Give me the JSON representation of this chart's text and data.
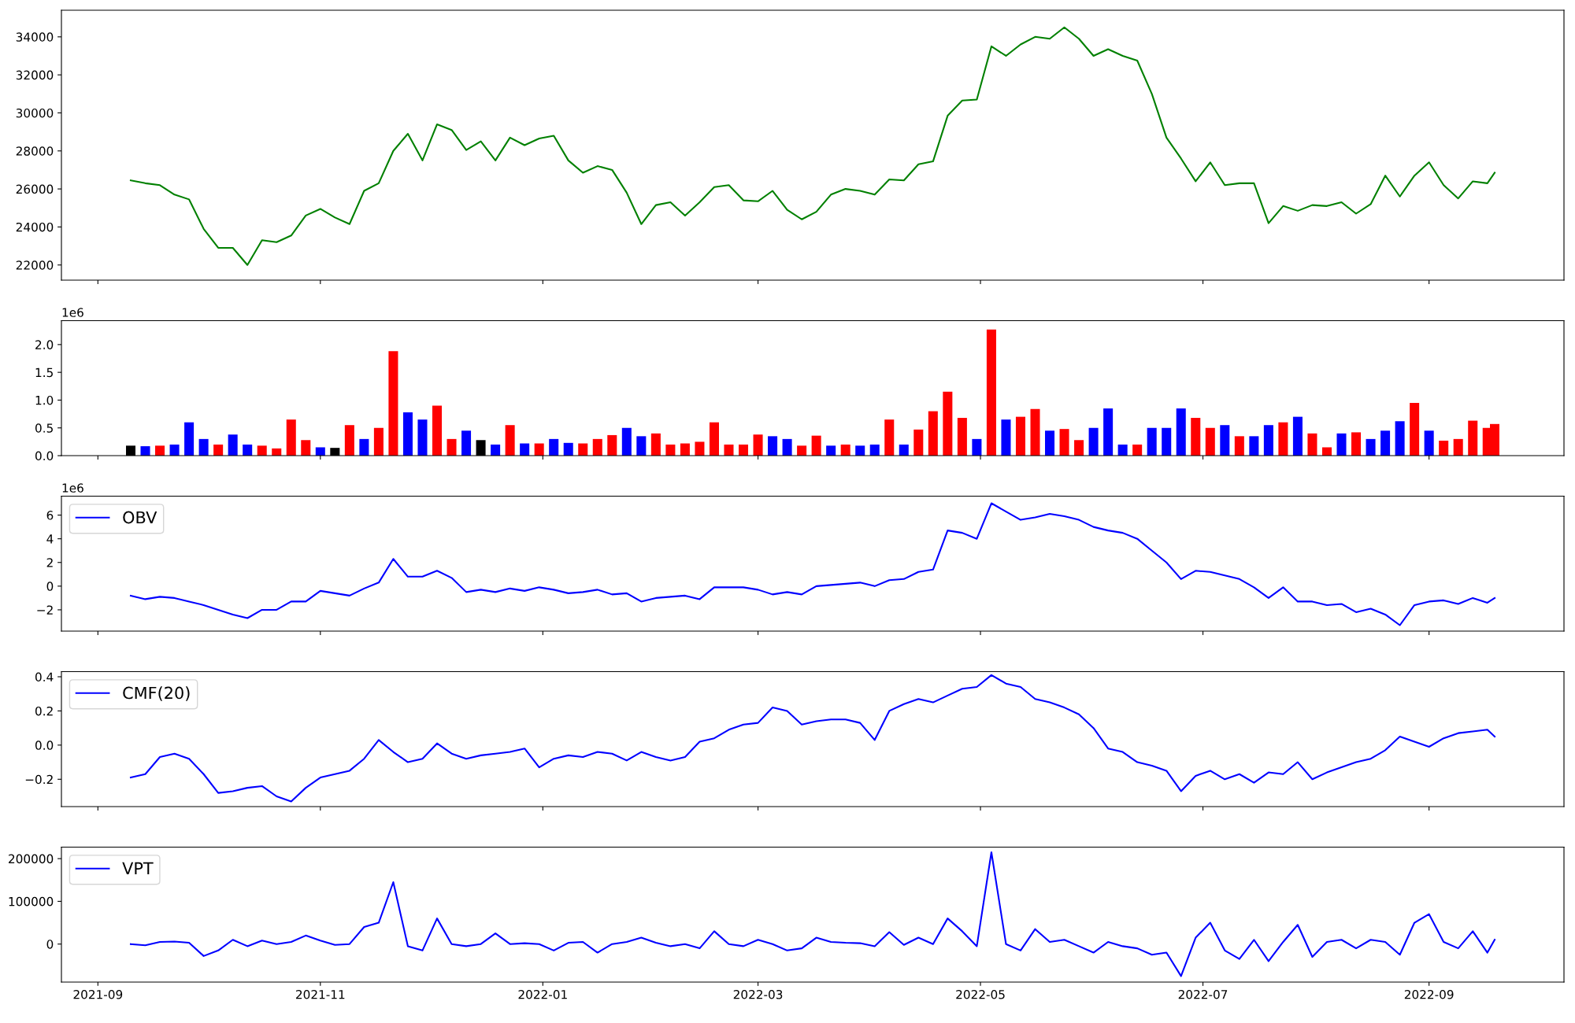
{
  "chart_data": [
    {
      "type": "line",
      "x": [
        "2021-09-10",
        "2021-09-14",
        "2021-09-18",
        "2021-09-22",
        "2021-09-26",
        "2021-09-30",
        "2021-10-04",
        "2021-10-08",
        "2021-10-12",
        "2021-10-16",
        "2021-10-20",
        "2021-10-24",
        "2021-10-28",
        "2021-11-01",
        "2021-11-05",
        "2021-11-09",
        "2021-11-13",
        "2021-11-17",
        "2021-11-21",
        "2021-11-25",
        "2021-11-29",
        "2021-12-03",
        "2021-12-07",
        "2021-12-11",
        "2021-12-15",
        "2021-12-19",
        "2021-12-23",
        "2021-12-27",
        "2021-12-31",
        "2022-01-04",
        "2022-01-08",
        "2022-01-12",
        "2022-01-16",
        "2022-01-20",
        "2022-01-24",
        "2022-01-28",
        "2022-02-01",
        "2022-02-05",
        "2022-02-09",
        "2022-02-13",
        "2022-02-17",
        "2022-02-21",
        "2022-02-25",
        "2022-03-01",
        "2022-03-05",
        "2022-03-09",
        "2022-03-13",
        "2022-03-17",
        "2022-03-21",
        "2022-03-25",
        "2022-03-29",
        "2022-04-02",
        "2022-04-06",
        "2022-04-10",
        "2022-04-14",
        "2022-04-18",
        "2022-04-22",
        "2022-04-26",
        "2022-04-30",
        "2022-05-04",
        "2022-05-08",
        "2022-05-12",
        "2022-05-16",
        "2022-05-20",
        "2022-05-24",
        "2022-05-28",
        "2022-06-01",
        "2022-06-05",
        "2022-06-09",
        "2022-06-13",
        "2022-06-17",
        "2022-06-21",
        "2022-06-25",
        "2022-06-29",
        "2022-07-03",
        "2022-07-07",
        "2022-07-11",
        "2022-07-15",
        "2022-07-19",
        "2022-07-23",
        "2022-07-27",
        "2022-07-31",
        "2022-08-04",
        "2022-08-08",
        "2022-08-12",
        "2022-08-16",
        "2022-08-20",
        "2022-08-24",
        "2022-08-28",
        "2022-09-01",
        "2022-09-05",
        "2022-09-09",
        "2022-09-13",
        "2022-09-17",
        "2022-09-19"
      ],
      "series": [
        {
          "color": "#008000",
          "values": [
            26450,
            26300,
            26200,
            25700,
            25450,
            23900,
            22900,
            22900,
            22000,
            23300,
            23200,
            23550,
            24600,
            24950,
            24500,
            24150,
            25900,
            26300,
            28000,
            28900,
            27500,
            29400,
            29100,
            28050,
            28500,
            27500,
            28700,
            28300,
            28650,
            28800,
            27500,
            26850,
            27200,
            27000,
            25800,
            24150,
            25150,
            25300,
            24600,
            25300,
            26100,
            26200,
            25400,
            25350,
            25900,
            24900,
            24400,
            24800,
            25700,
            26000,
            25900,
            25700,
            26500,
            26450,
            27300,
            27450,
            29850,
            30650,
            30700,
            33500,
            33000,
            33600,
            34000,
            33900,
            34500,
            33900,
            33000,
            33350,
            33000,
            32750,
            31000,
            28700,
            27600,
            26400,
            27400,
            26200,
            26300,
            26300,
            24200,
            25100,
            24850,
            25150,
            25100,
            25300,
            24700,
            25200,
            26700,
            25600,
            26700,
            27400,
            26200,
            25500,
            26400,
            26300,
            26850
          ]
        }
      ],
      "xlim": [
        "2021-08-22",
        "2022-10-08"
      ],
      "ylim": [
        21200,
        35400
      ],
      "yticks": [
        22000,
        24000,
        26000,
        28000,
        30000,
        32000,
        34000
      ],
      "xticks": [
        {
          "value": "2021-09-01",
          "label": null
        },
        {
          "value": "2021-11-01",
          "label": null
        },
        {
          "value": "2022-01-01",
          "label": null
        },
        {
          "value": "2022-03-01",
          "label": null
        },
        {
          "value": "2022-05-01",
          "label": null
        },
        {
          "value": "2022-07-01",
          "label": null
        },
        {
          "value": "2022-09-01",
          "label": null
        }
      ],
      "tick_labels": "y"
    },
    {
      "type": "bar",
      "x": [
        "2021-09-10",
        "2021-09-14",
        "2021-09-18",
        "2021-09-22",
        "2021-09-26",
        "2021-09-30",
        "2021-10-04",
        "2021-10-08",
        "2021-10-12",
        "2021-10-16",
        "2021-10-20",
        "2021-10-24",
        "2021-10-28",
        "2021-11-01",
        "2021-11-05",
        "2021-11-09",
        "2021-11-13",
        "2021-11-17",
        "2021-11-21",
        "2021-11-25",
        "2021-11-29",
        "2021-12-03",
        "2021-12-07",
        "2021-12-11",
        "2021-12-15",
        "2021-12-19",
        "2021-12-23",
        "2021-12-27",
        "2021-12-31",
        "2022-01-04",
        "2022-01-08",
        "2022-01-12",
        "2022-01-16",
        "2022-01-20",
        "2022-01-24",
        "2022-01-28",
        "2022-02-01",
        "2022-02-05",
        "2022-02-09",
        "2022-02-13",
        "2022-02-17",
        "2022-02-21",
        "2022-02-25",
        "2022-03-01",
        "2022-03-05",
        "2022-03-09",
        "2022-03-13",
        "2022-03-17",
        "2022-03-21",
        "2022-03-25",
        "2022-03-29",
        "2022-04-02",
        "2022-04-06",
        "2022-04-10",
        "2022-04-14",
        "2022-04-18",
        "2022-04-22",
        "2022-04-26",
        "2022-04-30",
        "2022-05-04",
        "2022-05-08",
        "2022-05-12",
        "2022-05-16",
        "2022-05-20",
        "2022-05-24",
        "2022-05-28",
        "2022-06-01",
        "2022-06-05",
        "2022-06-09",
        "2022-06-13",
        "2022-06-17",
        "2022-06-21",
        "2022-06-25",
        "2022-06-29",
        "2022-07-03",
        "2022-07-07",
        "2022-07-11",
        "2022-07-15",
        "2022-07-19",
        "2022-07-23",
        "2022-07-27",
        "2022-07-31",
        "2022-08-04",
        "2022-08-08",
        "2022-08-12",
        "2022-08-16",
        "2022-08-20",
        "2022-08-24",
        "2022-08-28",
        "2022-09-01",
        "2022-09-05",
        "2022-09-09",
        "2022-09-13",
        "2022-09-17",
        "2022-09-19"
      ],
      "values": [
        0.18,
        0.17,
        0.18,
        0.2,
        0.6,
        0.3,
        0.2,
        0.38,
        0.2,
        0.18,
        0.13,
        0.65,
        0.28,
        0.15,
        0.14,
        0.55,
        0.3,
        0.5,
        1.88,
        0.78,
        0.65,
        0.9,
        0.3,
        0.45,
        0.28,
        0.2,
        0.55,
        0.22,
        0.22,
        0.3,
        0.23,
        0.22,
        0.3,
        0.37,
        0.5,
        0.35,
        0.4,
        0.2,
        0.22,
        0.25,
        0.6,
        0.2,
        0.2,
        0.38,
        0.35,
        0.3,
        0.18,
        0.36,
        0.18,
        0.2,
        0.18,
        0.2,
        0.65,
        0.2,
        0.47,
        0.8,
        1.15,
        0.68,
        0.3,
        2.27,
        0.65,
        0.7,
        0.84,
        0.45,
        0.48,
        0.28,
        0.5,
        0.85,
        0.2,
        0.2,
        0.5,
        0.5,
        0.85,
        0.68,
        0.5,
        0.55,
        0.35,
        0.35,
        0.55,
        0.6,
        0.7,
        0.4,
        0.15,
        0.4,
        0.42,
        0.3,
        0.45,
        0.62,
        0.95,
        0.45,
        0.27,
        0.3,
        0.63,
        0.5,
        0.57
      ],
      "colors": [
        "#000000",
        "#0000ff",
        "#ff0000",
        "#0000ff",
        "#0000ff",
        "#0000ff",
        "#ff0000",
        "#0000ff",
        "#0000ff",
        "#ff0000",
        "#ff0000",
        "#ff0000",
        "#ff0000",
        "#0000ff",
        "#000000",
        "#ff0000",
        "#0000ff",
        "#ff0000",
        "#ff0000",
        "#0000ff",
        "#0000ff",
        "#ff0000",
        "#ff0000",
        "#0000ff",
        "#000000",
        "#0000ff",
        "#ff0000",
        "#0000ff",
        "#ff0000",
        "#0000ff",
        "#0000ff",
        "#ff0000",
        "#ff0000",
        "#ff0000",
        "#0000ff",
        "#0000ff",
        "#ff0000",
        "#ff0000",
        "#ff0000",
        "#ff0000",
        "#ff0000",
        "#ff0000",
        "#ff0000",
        "#ff0000",
        "#0000ff",
        "#0000ff",
        "#ff0000",
        "#ff0000",
        "#0000ff",
        "#ff0000",
        "#0000ff",
        "#0000ff",
        "#ff0000",
        "#0000ff",
        "#ff0000",
        "#ff0000",
        "#ff0000",
        "#ff0000",
        "#0000ff",
        "#ff0000",
        "#0000ff",
        "#ff0000",
        "#ff0000",
        "#0000ff",
        "#ff0000",
        "#ff0000",
        "#0000ff",
        "#0000ff",
        "#0000ff",
        "#ff0000",
        "#0000ff",
        "#0000ff",
        "#0000ff",
        "#ff0000",
        "#ff0000",
        "#0000ff",
        "#ff0000",
        "#0000ff",
        "#0000ff",
        "#ff0000",
        "#0000ff",
        "#ff0000",
        "#ff0000",
        "#0000ff",
        "#ff0000",
        "#0000ff",
        "#0000ff",
        "#0000ff",
        "#ff0000",
        "#0000ff",
        "#ff0000",
        "#ff0000",
        "#ff0000",
        "#ff0000",
        "#ff0000"
      ],
      "xlim": [
        "2021-08-22",
        "2022-10-08"
      ],
      "ylim": [
        0,
        2.43
      ],
      "yticks": [
        {
          "value": 0,
          "label": "0.0"
        },
        {
          "value": 0.5,
          "label": "0.5"
        },
        {
          "value": 1.0,
          "label": "1.0"
        },
        {
          "value": 1.5,
          "label": "1.5"
        },
        {
          "value": 2.0,
          "label": "2.0"
        }
      ],
      "xticks": [
        {
          "value": "2021-09-01",
          "label": null
        },
        {
          "value": "2021-11-01",
          "label": null
        },
        {
          "value": "2022-01-01",
          "label": null
        },
        {
          "value": "2022-03-01",
          "label": null
        },
        {
          "value": "2022-05-01",
          "label": null
        },
        {
          "value": "2022-07-01",
          "label": null
        },
        {
          "value": "2022-09-01",
          "label": null
        }
      ],
      "annotations": [
        "1e6"
      ],
      "tick_labels": "y"
    },
    {
      "type": "line",
      "x": [
        "2021-09-10",
        "2021-09-14",
        "2021-09-18",
        "2021-09-22",
        "2021-09-26",
        "2021-09-30",
        "2021-10-04",
        "2021-10-08",
        "2021-10-12",
        "2021-10-16",
        "2021-10-20",
        "2021-10-24",
        "2021-10-28",
        "2021-11-01",
        "2021-11-05",
        "2021-11-09",
        "2021-11-13",
        "2021-11-17",
        "2021-11-21",
        "2021-11-25",
        "2021-11-29",
        "2021-12-03",
        "2021-12-07",
        "2021-12-11",
        "2021-12-15",
        "2021-12-19",
        "2021-12-23",
        "2021-12-27",
        "2021-12-31",
        "2022-01-04",
        "2022-01-08",
        "2022-01-12",
        "2022-01-16",
        "2022-01-20",
        "2022-01-24",
        "2022-01-28",
        "2022-02-01",
        "2022-02-05",
        "2022-02-09",
        "2022-02-13",
        "2022-02-17",
        "2022-02-21",
        "2022-02-25",
        "2022-03-01",
        "2022-03-05",
        "2022-03-09",
        "2022-03-13",
        "2022-03-17",
        "2022-03-21",
        "2022-03-25",
        "2022-03-29",
        "2022-04-02",
        "2022-04-06",
        "2022-04-10",
        "2022-04-14",
        "2022-04-18",
        "2022-04-22",
        "2022-04-26",
        "2022-04-30",
        "2022-05-04",
        "2022-05-08",
        "2022-05-12",
        "2022-05-16",
        "2022-05-20",
        "2022-05-24",
        "2022-05-28",
        "2022-06-01",
        "2022-06-05",
        "2022-06-09",
        "2022-06-13",
        "2022-06-17",
        "2022-06-21",
        "2022-06-25",
        "2022-06-29",
        "2022-07-03",
        "2022-07-07",
        "2022-07-11",
        "2022-07-15",
        "2022-07-19",
        "2022-07-23",
        "2022-07-27",
        "2022-07-31",
        "2022-08-04",
        "2022-08-08",
        "2022-08-12",
        "2022-08-16",
        "2022-08-20",
        "2022-08-24",
        "2022-08-28",
        "2022-09-01",
        "2022-09-05",
        "2022-09-09",
        "2022-09-13",
        "2022-09-17",
        "2022-09-19"
      ],
      "series": [
        {
          "name": "OBV",
          "color": "#0000ff",
          "values": [
            -0.8,
            -1.1,
            -0.9,
            -1.0,
            -1.3,
            -1.6,
            -2.0,
            -2.4,
            -2.7,
            -2.0,
            -2.0,
            -1.3,
            -1.3,
            -0.4,
            -0.6,
            -0.8,
            -0.2,
            0.3,
            2.3,
            0.8,
            0.8,
            1.3,
            0.7,
            -0.5,
            -0.3,
            -0.5,
            -0.2,
            -0.4,
            -0.1,
            -0.3,
            -0.6,
            -0.5,
            -0.3,
            -0.7,
            -0.6,
            -1.3,
            -1.0,
            -0.9,
            -0.8,
            -1.1,
            -0.1,
            -0.1,
            -0.1,
            -0.3,
            -0.7,
            -0.5,
            -0.7,
            0,
            0.1,
            0.2,
            0.3,
            0,
            0.5,
            0.6,
            1.2,
            1.4,
            4.7,
            4.5,
            4.0,
            7.0,
            6.3,
            5.6,
            5.8,
            6.1,
            5.9,
            5.6,
            5.0,
            4.7,
            4.5,
            4.0,
            3.0,
            2.0,
            0.6,
            1.3,
            1.2,
            0.9,
            0.6,
            -0.1,
            -1.0,
            -0.1,
            -1.3,
            -1.3,
            -1.6,
            -1.5,
            -2.2,
            -1.9,
            -2.4,
            -3.3,
            -1.6,
            -1.3,
            -1.2,
            -1.5,
            -1.0,
            -1.4,
            -1.0
          ]
        }
      ],
      "xlim": [
        "2021-08-22",
        "2022-10-08"
      ],
      "ylim": [
        -3.8,
        7.6
      ],
      "yticks": [
        {
          "value": -2,
          "label": "−2"
        },
        0,
        2,
        4,
        6
      ],
      "xticks": [
        {
          "value": "2021-09-01",
          "label": null
        },
        {
          "value": "2021-11-01",
          "label": null
        },
        {
          "value": "2022-01-01",
          "label": null
        },
        {
          "value": "2022-03-01",
          "label": null
        },
        {
          "value": "2022-05-01",
          "label": null
        },
        {
          "value": "2022-07-01",
          "label": null
        },
        {
          "value": "2022-09-01",
          "label": null
        }
      ],
      "annotations": [
        "1e6"
      ],
      "legend": "top left",
      "tick_labels": "y"
    },
    {
      "type": "line",
      "x": [
        "2021-09-10",
        "2021-09-14",
        "2021-09-18",
        "2021-09-22",
        "2021-09-26",
        "2021-09-30",
        "2021-10-04",
        "2021-10-08",
        "2021-10-12",
        "2021-10-16",
        "2021-10-20",
        "2021-10-24",
        "2021-10-28",
        "2021-11-01",
        "2021-11-05",
        "2021-11-09",
        "2021-11-13",
        "2021-11-17",
        "2021-11-21",
        "2021-11-25",
        "2021-11-29",
        "2021-12-03",
        "2021-12-07",
        "2021-12-11",
        "2021-12-15",
        "2021-12-19",
        "2021-12-23",
        "2021-12-27",
        "2021-12-31",
        "2022-01-04",
        "2022-01-08",
        "2022-01-12",
        "2022-01-16",
        "2022-01-20",
        "2022-01-24",
        "2022-01-28",
        "2022-02-01",
        "2022-02-05",
        "2022-02-09",
        "2022-02-13",
        "2022-02-17",
        "2022-02-21",
        "2022-02-25",
        "2022-03-01",
        "2022-03-05",
        "2022-03-09",
        "2022-03-13",
        "2022-03-17",
        "2022-03-21",
        "2022-03-25",
        "2022-03-29",
        "2022-04-02",
        "2022-04-06",
        "2022-04-10",
        "2022-04-14",
        "2022-04-18",
        "2022-04-22",
        "2022-04-26",
        "2022-04-30",
        "2022-05-04",
        "2022-05-08",
        "2022-05-12",
        "2022-05-16",
        "2022-05-20",
        "2022-05-24",
        "2022-05-28",
        "2022-06-01",
        "2022-06-05",
        "2022-06-09",
        "2022-06-13",
        "2022-06-17",
        "2022-06-21",
        "2022-06-25",
        "2022-06-29",
        "2022-07-03",
        "2022-07-07",
        "2022-07-11",
        "2022-07-15",
        "2022-07-19",
        "2022-07-23",
        "2022-07-27",
        "2022-07-31",
        "2022-08-04",
        "2022-08-08",
        "2022-08-12",
        "2022-08-16",
        "2022-08-20",
        "2022-08-24",
        "2022-08-28",
        "2022-09-01",
        "2022-09-05",
        "2022-09-09",
        "2022-09-13",
        "2022-09-17",
        "2022-09-19"
      ],
      "series": [
        {
          "name": "CMF(20)",
          "color": "#0000ff",
          "values": [
            -0.19,
            -0.17,
            -0.07,
            -0.05,
            -0.08,
            -0.17,
            -0.28,
            -0.27,
            -0.25,
            -0.24,
            -0.3,
            -0.33,
            -0.25,
            -0.19,
            -0.17,
            -0.15,
            -0.08,
            0.03,
            -0.04,
            -0.1,
            -0.08,
            0.01,
            -0.05,
            -0.08,
            -0.06,
            -0.05,
            -0.04,
            -0.02,
            -0.13,
            -0.08,
            -0.06,
            -0.07,
            -0.04,
            -0.05,
            -0.09,
            -0.04,
            -0.07,
            -0.09,
            -0.07,
            0.02,
            0.04,
            0.09,
            0.12,
            0.13,
            0.22,
            0.2,
            0.12,
            0.14,
            0.15,
            0.15,
            0.13,
            0.03,
            0.2,
            0.24,
            0.27,
            0.25,
            0.29,
            0.33,
            0.34,
            0.41,
            0.36,
            0.34,
            0.27,
            0.25,
            0.22,
            0.18,
            0.1,
            -0.02,
            -0.04,
            -0.1,
            -0.12,
            -0.15,
            -0.27,
            -0.18,
            -0.15,
            -0.2,
            -0.17,
            -0.22,
            -0.16,
            -0.17,
            -0.1,
            -0.2,
            -0.16,
            -0.13,
            -0.1,
            -0.08,
            -0.03,
            0.05,
            0.02,
            -0.01,
            0.04,
            0.07,
            0.08,
            0.09,
            0.05
          ]
        }
      ],
      "xlim": [
        "2021-08-22",
        "2022-10-08"
      ],
      "ylim": [
        -0.36,
        0.43
      ],
      "yticks": [
        {
          "value": -0.2,
          "label": "−0.2"
        },
        {
          "value": 0,
          "label": "0.0"
        },
        {
          "value": 0.2,
          "label": "0.2"
        },
        {
          "value": 0.4,
          "label": "0.4"
        }
      ],
      "xticks": [
        {
          "value": "2021-09-01",
          "label": null
        },
        {
          "value": "2021-11-01",
          "label": null
        },
        {
          "value": "2022-01-01",
          "label": null
        },
        {
          "value": "2022-03-01",
          "label": null
        },
        {
          "value": "2022-05-01",
          "label": null
        },
        {
          "value": "2022-07-01",
          "label": null
        },
        {
          "value": "2022-09-01",
          "label": null
        }
      ],
      "legend": "top left",
      "tick_labels": "y"
    },
    {
      "type": "line",
      "x": [
        "2021-09-10",
        "2021-09-14",
        "2021-09-18",
        "2021-09-22",
        "2021-09-26",
        "2021-09-30",
        "2021-10-04",
        "2021-10-08",
        "2021-10-12",
        "2021-10-16",
        "2021-10-20",
        "2021-10-24",
        "2021-10-28",
        "2021-11-01",
        "2021-11-05",
        "2021-11-09",
        "2021-11-13",
        "2021-11-17",
        "2021-11-21",
        "2021-11-25",
        "2021-11-29",
        "2021-12-03",
        "2021-12-07",
        "2021-12-11",
        "2021-12-15",
        "2021-12-19",
        "2021-12-23",
        "2021-12-27",
        "2021-12-31",
        "2022-01-04",
        "2022-01-08",
        "2022-01-12",
        "2022-01-16",
        "2022-01-20",
        "2022-01-24",
        "2022-01-28",
        "2022-02-01",
        "2022-02-05",
        "2022-02-09",
        "2022-02-13",
        "2022-02-17",
        "2022-02-21",
        "2022-02-25",
        "2022-03-01",
        "2022-03-05",
        "2022-03-09",
        "2022-03-13",
        "2022-03-17",
        "2022-03-21",
        "2022-03-25",
        "2022-03-29",
        "2022-04-02",
        "2022-04-06",
        "2022-04-10",
        "2022-04-14",
        "2022-04-18",
        "2022-04-22",
        "2022-04-26",
        "2022-04-30",
        "2022-05-04",
        "2022-05-08",
        "2022-05-12",
        "2022-05-16",
        "2022-05-20",
        "2022-05-24",
        "2022-05-28",
        "2022-06-01",
        "2022-06-05",
        "2022-06-09",
        "2022-06-13",
        "2022-06-17",
        "2022-06-21",
        "2022-06-25",
        "2022-06-29",
        "2022-07-03",
        "2022-07-07",
        "2022-07-11",
        "2022-07-15",
        "2022-07-19",
        "2022-07-23",
        "2022-07-27",
        "2022-07-31",
        "2022-08-04",
        "2022-08-08",
        "2022-08-12",
        "2022-08-16",
        "2022-08-20",
        "2022-08-24",
        "2022-08-28",
        "2022-09-01",
        "2022-09-05",
        "2022-09-09",
        "2022-09-13",
        "2022-09-17",
        "2022-09-19"
      ],
      "series": [
        {
          "name": "VPT",
          "color": "#0000ff",
          "values": [
            0,
            -3000,
            5000,
            6000,
            3000,
            -28000,
            -15000,
            10000,
            -5000,
            8000,
            0,
            5000,
            20000,
            8000,
            -2000,
            0,
            40000,
            50000,
            145000,
            -5000,
            -15000,
            60000,
            0,
            -5000,
            0,
            25000,
            0,
            2000,
            0,
            -15000,
            3000,
            5000,
            -20000,
            0,
            5000,
            15000,
            3000,
            -5000,
            0,
            -10000,
            30000,
            0,
            -5000,
            10000,
            0,
            -15000,
            -10000,
            15000,
            5000,
            3000,
            2000,
            -5000,
            28000,
            -2000,
            15000,
            0,
            60000,
            30000,
            -5000,
            215000,
            0,
            -15000,
            35000,
            5000,
            10000,
            -5000,
            -20000,
            5000,
            -5000,
            -10000,
            -25000,
            -20000,
            -75000,
            15000,
            50000,
            -15000,
            -35000,
            10000,
            -40000,
            5000,
            45000,
            -30000,
            5000,
            10000,
            -10000,
            10000,
            5000,
            -25000,
            50000,
            70000,
            5000,
            -10000,
            30000,
            -20000,
            10000
          ]
        }
      ],
      "xlim": [
        "2021-08-22",
        "2022-10-08"
      ],
      "ylim": [
        -89000,
        227000
      ],
      "yticks": [
        0,
        100000,
        200000
      ],
      "xticks": [
        {
          "value": "2021-09-01",
          "label": "2021-09"
        },
        {
          "value": "2021-11-01",
          "label": "2021-11"
        },
        {
          "value": "2022-01-01",
          "label": "2022-01"
        },
        {
          "value": "2022-03-01",
          "label": "2022-03"
        },
        {
          "value": "2022-05-01",
          "label": "2022-05"
        },
        {
          "value": "2022-07-01",
          "label": "2022-07"
        },
        {
          "value": "2022-09-01",
          "label": "2022-09"
        }
      ],
      "legend": "top left"
    }
  ]
}
